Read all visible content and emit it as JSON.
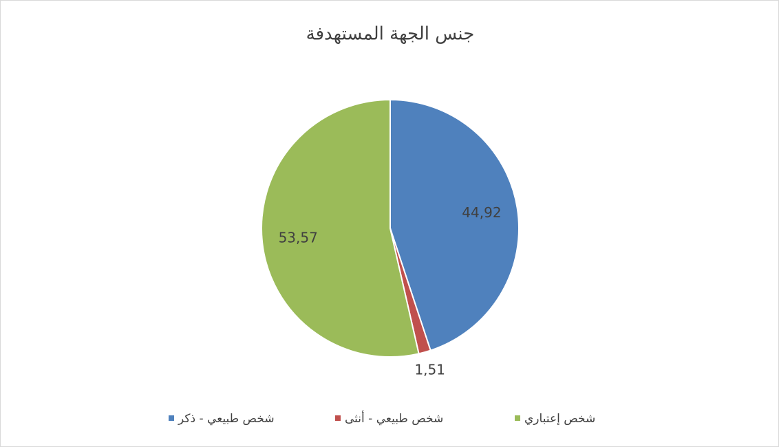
{
  "chart_data": {
    "type": "pie",
    "title": "جنس الجهة المستهدفة",
    "categories": [
      "شخص طبيعي - ذكر",
      "شخص طبيعي - أنثى",
      "شخص إعتباري"
    ],
    "values": [
      44.92,
      1.51,
      53.57
    ],
    "value_labels": [
      "44,92",
      "1,51",
      "53,57"
    ],
    "colors": [
      "#4f81bd",
      "#c0504d",
      "#9bbb59"
    ]
  }
}
